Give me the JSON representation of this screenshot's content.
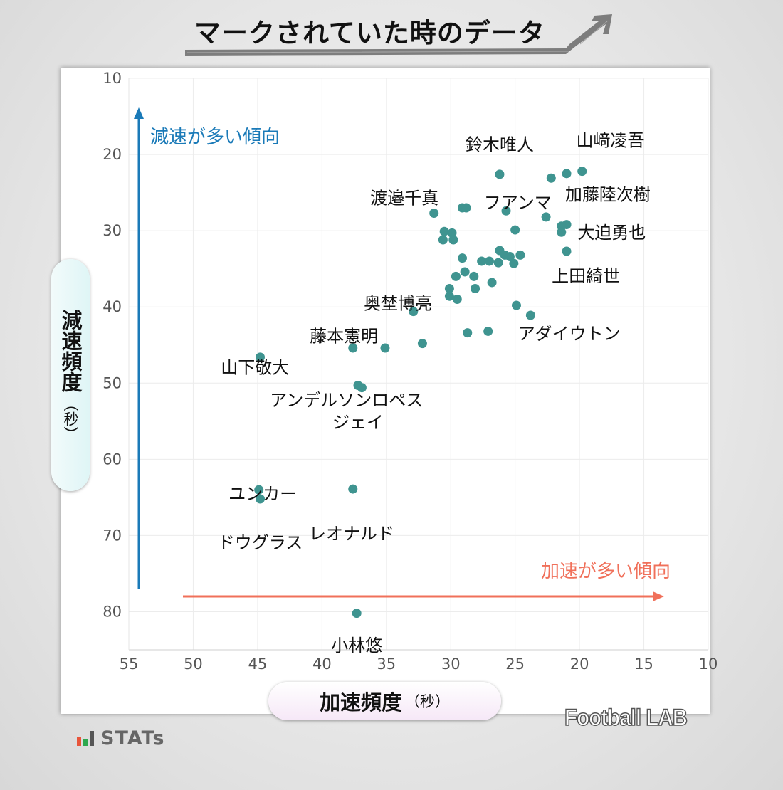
{
  "title": "マークされていた時のデータ",
  "x_axis_label": "加速頻度",
  "y_axis_label": "減速頻度",
  "axis_unit": "（秒）",
  "brand_fl": "Football LAB",
  "brand_stats": "STATs",
  "chart_data": {
    "type": "scatter",
    "title": "マークされていた時のデータ",
    "xlabel": "加速頻度（秒）",
    "ylabel": "減速頻度（秒）",
    "xlim": [
      55,
      10
    ],
    "ylim": [
      85,
      10
    ],
    "x_reversed": true,
    "y_reversed": true,
    "x_ticks": [
      55,
      50,
      45,
      40,
      35,
      30,
      25,
      20,
      15,
      10
    ],
    "y_ticks": [
      10,
      20,
      30,
      40,
      50,
      60,
      70,
      80
    ],
    "grid": true,
    "point_color": "#3f9490",
    "annotations": [
      {
        "text": "減速が多い傾向",
        "color": "#1a7ab8"
      },
      {
        "text": "加速が多い傾向",
        "color": "#f0705a"
      }
    ],
    "points": [
      {
        "x": 26.2,
        "y": 22.6,
        "label": "鈴木唯人"
      },
      {
        "x": 19.8,
        "y": 22.2,
        "label": "山﨑凌吾"
      },
      {
        "x": 21.0,
        "y": 22.5,
        "label": "加藤陸次樹"
      },
      {
        "x": 22.2,
        "y": 23.1,
        "label": "フアンマ"
      },
      {
        "x": 31.3,
        "y": 27.7,
        "label": "渡邉千真"
      },
      {
        "x": 21.0,
        "y": 29.2,
        "label": "大迫勇也"
      },
      {
        "x": 21.0,
        "y": 32.7,
        "label": "上田綺世"
      },
      {
        "x": 32.9,
        "y": 40.6,
        "label": "奥埜博亮"
      },
      {
        "x": 23.8,
        "y": 41.1,
        "label": "アダイウトン"
      },
      {
        "x": 37.6,
        "y": 45.4,
        "label": "藤本憲明"
      },
      {
        "x": 44.8,
        "y": 46.6,
        "label": "山下敬大"
      },
      {
        "x": 37.2,
        "y": 50.3,
        "label": "アンデルソンロペス"
      },
      {
        "x": 36.9,
        "y": 50.6,
        "label": "ジェイ"
      },
      {
        "x": 44.9,
        "y": 64.0,
        "label": "ユンカー"
      },
      {
        "x": 44.8,
        "y": 65.2,
        "label": "ドウグラス"
      },
      {
        "x": 37.6,
        "y": 63.9,
        "label": "レオナルド"
      },
      {
        "x": 37.3,
        "y": 80.2,
        "label": "小林悠"
      },
      {
        "x": 29.1,
        "y": 27.0
      },
      {
        "x": 28.8,
        "y": 27.0
      },
      {
        "x": 25.7,
        "y": 27.4
      },
      {
        "x": 22.6,
        "y": 28.2
      },
      {
        "x": 21.4,
        "y": 29.4
      },
      {
        "x": 21.4,
        "y": 30.2
      },
      {
        "x": 30.5,
        "y": 30.1
      },
      {
        "x": 29.9,
        "y": 30.3
      },
      {
        "x": 30.6,
        "y": 31.2
      },
      {
        "x": 29.8,
        "y": 31.2
      },
      {
        "x": 25.0,
        "y": 29.9
      },
      {
        "x": 26.2,
        "y": 32.6
      },
      {
        "x": 25.8,
        "y": 33.2
      },
      {
        "x": 25.4,
        "y": 33.4
      },
      {
        "x": 24.6,
        "y": 33.2
      },
      {
        "x": 29.1,
        "y": 33.6
      },
      {
        "x": 27.6,
        "y": 34.0
      },
      {
        "x": 27.0,
        "y": 34.0
      },
      {
        "x": 26.3,
        "y": 34.2
      },
      {
        "x": 25.1,
        "y": 34.3
      },
      {
        "x": 28.9,
        "y": 35.4
      },
      {
        "x": 29.6,
        "y": 36.0
      },
      {
        "x": 28.2,
        "y": 36.0
      },
      {
        "x": 26.8,
        "y": 36.8
      },
      {
        "x": 30.1,
        "y": 37.6
      },
      {
        "x": 28.1,
        "y": 37.6
      },
      {
        "x": 30.1,
        "y": 38.6
      },
      {
        "x": 29.5,
        "y": 39.0
      },
      {
        "x": 24.9,
        "y": 39.8
      },
      {
        "x": 28.7,
        "y": 43.4
      },
      {
        "x": 27.1,
        "y": 43.2
      },
      {
        "x": 35.1,
        "y": 45.4
      },
      {
        "x": 32.2,
        "y": 44.8
      }
    ]
  }
}
